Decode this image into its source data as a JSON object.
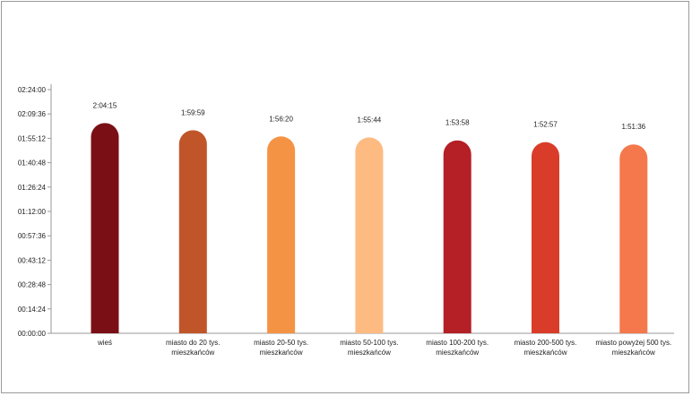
{
  "chart_data": {
    "type": "bar",
    "title": "",
    "xlabel": "",
    "ylabel": "",
    "categories": [
      [
        "wieś"
      ],
      [
        "miasto do 20 tys.",
        "mieszkańców"
      ],
      [
        "miasto 20-50 tys.",
        "mieszkańców"
      ],
      [
        "miasto 50-100 tys.",
        "mieszkańców"
      ],
      [
        "miasto 100-200 tys.",
        "mieszkańców"
      ],
      [
        "miasto 200-500 tys.",
        "mieszkańców"
      ],
      [
        "miasto powyżej 500 tys.",
        "mieszkańców"
      ]
    ],
    "values_seconds": [
      7455,
      7199,
      6980,
      6944,
      6838,
      6777,
      6696
    ],
    "value_labels": [
      "2:04:15",
      "1:59:59",
      "1:56:20",
      "1:55:44",
      "1:53:58",
      "1:52:57",
      "1:51:36"
    ],
    "colors": [
      "#7a1015",
      "#c0552a",
      "#f59345",
      "#fdbb82",
      "#b51f26",
      "#d93d2a",
      "#f4784b"
    ],
    "ylim_seconds": [
      0,
      8640
    ],
    "ytick_values_seconds": [
      0,
      864,
      1728,
      2592,
      3456,
      4320,
      5184,
      6048,
      6912,
      7776,
      8640
    ],
    "ytick_labels": [
      "00:00:00",
      "00:14:24",
      "00:28:48",
      "00:43:12",
      "00:57:36",
      "01:12:00",
      "01:26:24",
      "01:40:48",
      "01:55:12",
      "02:09:36",
      "02:24:00"
    ],
    "grid": false,
    "legend": "none"
  }
}
